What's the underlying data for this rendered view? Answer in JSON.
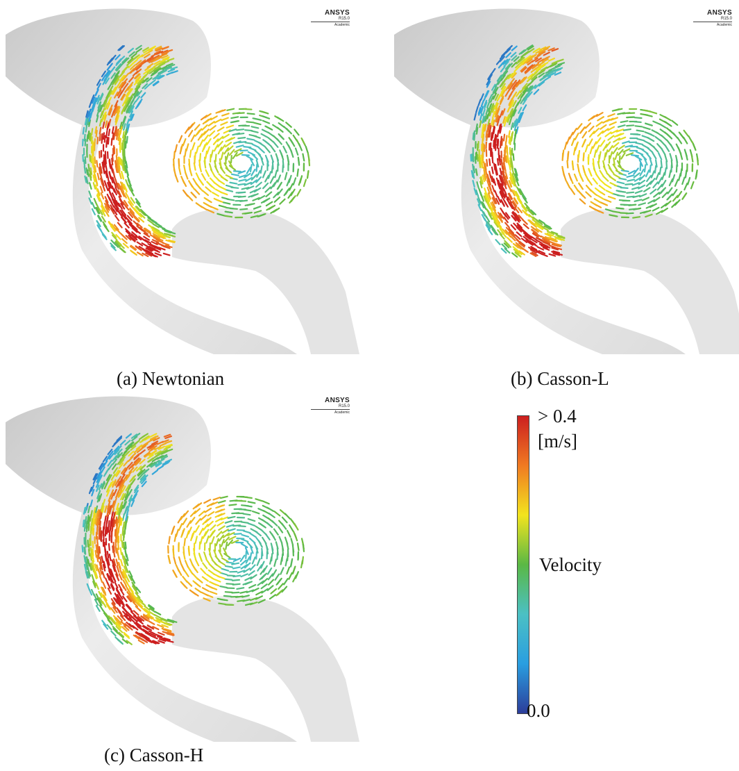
{
  "panels": [
    {
      "caption": "(a) Newtonian",
      "watermark": {
        "brand": "ANSYS",
        "version": "R15.0",
        "edition": "Academic"
      }
    },
    {
      "caption": "(b) Casson-L",
      "watermark": {
        "brand": "ANSYS",
        "version": "R15.0",
        "edition": "Academic"
      }
    },
    {
      "caption": "(c) Casson-H",
      "watermark": {
        "brand": "ANSYS",
        "version": "R15.0",
        "edition": "Academic"
      }
    }
  ],
  "legend": {
    "max_label": "> 0.4",
    "unit": "[m/s]",
    "title": "Velocity",
    "min_label": "0.0",
    "colors": [
      "#cc1f1f",
      "#f07a22",
      "#f2e41e",
      "#5ab845",
      "#4bc0c4",
      "#2a9ee0",
      "#2c3d9a"
    ]
  }
}
